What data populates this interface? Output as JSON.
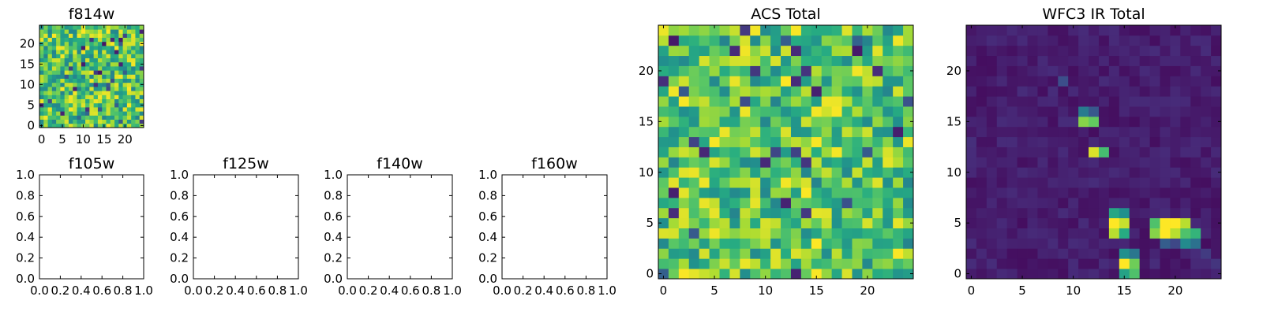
{
  "chart_data": [
    {
      "id": "f814w",
      "type": "heatmap",
      "title": "f814w",
      "grid_size": 25,
      "xlim": [
        -0.5,
        24.5
      ],
      "ylim": [
        -0.5,
        24.5
      ],
      "xticks": [
        0,
        5,
        10,
        15,
        20
      ],
      "xtick_labels": [
        "0",
        "5",
        "10",
        "15",
        "20"
      ],
      "yticks": [
        0,
        5,
        10,
        15,
        20
      ],
      "ytick_labels": [
        "0",
        "5",
        "10",
        "15",
        "20"
      ],
      "colormap": "viridis",
      "pattern": "uniform-noise",
      "seed": 814
    },
    {
      "id": "f105w",
      "type": "empty",
      "title": "f105w",
      "xlim": [
        0,
        1
      ],
      "ylim": [
        0,
        1
      ],
      "xticks": [
        0,
        0.2,
        0.4,
        0.6,
        0.8,
        1.0
      ],
      "xtick_labels": [
        "0.0",
        "0.2",
        "0.4",
        "0.6",
        "0.8",
        "1.0"
      ],
      "yticks": [
        0,
        0.2,
        0.4,
        0.6,
        0.8,
        1.0
      ],
      "ytick_labels": [
        "0.0",
        "0.2",
        "0.4",
        "0.6",
        "0.8",
        "1.0"
      ]
    },
    {
      "id": "f125w",
      "type": "empty",
      "title": "f125w",
      "xlim": [
        0,
        1
      ],
      "ylim": [
        0,
        1
      ],
      "xticks": [
        0,
        0.2,
        0.4,
        0.6,
        0.8,
        1.0
      ],
      "xtick_labels": [
        "0.0",
        "0.2",
        "0.4",
        "0.6",
        "0.8",
        "1.0"
      ],
      "yticks": [
        0,
        0.2,
        0.4,
        0.6,
        0.8,
        1.0
      ],
      "ytick_labels": [
        "0.0",
        "0.2",
        "0.4",
        "0.6",
        "0.8",
        "1.0"
      ]
    },
    {
      "id": "f140w",
      "type": "empty",
      "title": "f140w",
      "xlim": [
        0,
        1
      ],
      "ylim": [
        0,
        1
      ],
      "xticks": [
        0,
        0.2,
        0.4,
        0.6,
        0.8,
        1.0
      ],
      "xtick_labels": [
        "0.0",
        "0.2",
        "0.4",
        "0.6",
        "0.8",
        "1.0"
      ],
      "yticks": [
        0,
        0.2,
        0.4,
        0.6,
        0.8,
        1.0
      ],
      "ytick_labels": [
        "0.0",
        "0.2",
        "0.4",
        "0.6",
        "0.8",
        "1.0"
      ]
    },
    {
      "id": "f160w",
      "type": "empty",
      "title": "f160w",
      "xlim": [
        0,
        1
      ],
      "ylim": [
        0,
        1
      ],
      "xticks": [
        0,
        0.2,
        0.4,
        0.6,
        0.8,
        1.0
      ],
      "xtick_labels": [
        "0.0",
        "0.2",
        "0.4",
        "0.6",
        "0.8",
        "1.0"
      ],
      "yticks": [
        0,
        0.2,
        0.4,
        0.6,
        0.8,
        1.0
      ],
      "ytick_labels": [
        "0.0",
        "0.2",
        "0.4",
        "0.6",
        "0.8",
        "1.0"
      ]
    },
    {
      "id": "acs-total",
      "type": "heatmap",
      "title": "ACS Total",
      "grid_size": 25,
      "xlim": [
        -0.5,
        24.5
      ],
      "ylim": [
        -0.5,
        24.5
      ],
      "xticks": [
        0,
        5,
        10,
        15,
        20
      ],
      "xtick_labels": [
        "0",
        "5",
        "10",
        "15",
        "20"
      ],
      "yticks": [
        0,
        5,
        10,
        15,
        20
      ],
      "ytick_labels": [
        "0",
        "5",
        "10",
        "15",
        "20"
      ],
      "colormap": "viridis",
      "pattern": "uniform-noise",
      "seed": 2024
    },
    {
      "id": "wfc3-ir-total",
      "type": "heatmap",
      "title": "WFC3 IR Total",
      "grid_size": 25,
      "xlim": [
        -0.5,
        24.5
      ],
      "ylim": [
        -0.5,
        24.5
      ],
      "xticks": [
        0,
        5,
        10,
        15,
        20
      ],
      "xtick_labels": [
        "0",
        "5",
        "10",
        "15",
        "20"
      ],
      "yticks": [
        0,
        5,
        10,
        15,
        20
      ],
      "ytick_labels": [
        "0",
        "5",
        "10",
        "15",
        "20"
      ],
      "colormap": "viridis",
      "pattern": "sparse-sources",
      "seed": 3141,
      "background_level": 0.04,
      "bright_pixels": [
        {
          "x": 11,
          "y": 15,
          "v": 0.82
        },
        {
          "x": 12,
          "y": 15,
          "v": 0.76
        },
        {
          "x": 11,
          "y": 16,
          "v": 0.42
        },
        {
          "x": 12,
          "y": 16,
          "v": 0.28
        },
        {
          "x": 12,
          "y": 12,
          "v": 0.95
        },
        {
          "x": 13,
          "y": 12,
          "v": 0.7
        },
        {
          "x": 14,
          "y": 6,
          "v": 0.6
        },
        {
          "x": 15,
          "y": 6,
          "v": 0.5
        },
        {
          "x": 14,
          "y": 5,
          "v": 1.0
        },
        {
          "x": 15,
          "y": 5,
          "v": 0.92
        },
        {
          "x": 14,
          "y": 4,
          "v": 0.9
        },
        {
          "x": 15,
          "y": 4,
          "v": 0.62
        },
        {
          "x": 18,
          "y": 5,
          "v": 0.72
        },
        {
          "x": 19,
          "y": 5,
          "v": 1.0
        },
        {
          "x": 20,
          "y": 5,
          "v": 1.0
        },
        {
          "x": 21,
          "y": 5,
          "v": 0.9
        },
        {
          "x": 18,
          "y": 4,
          "v": 0.82
        },
        {
          "x": 19,
          "y": 4,
          "v": 1.0
        },
        {
          "x": 20,
          "y": 4,
          "v": 0.9
        },
        {
          "x": 21,
          "y": 4,
          "v": 0.72
        },
        {
          "x": 22,
          "y": 4,
          "v": 0.66
        },
        {
          "x": 19,
          "y": 3,
          "v": 0.3
        },
        {
          "x": 20,
          "y": 3,
          "v": 0.22
        },
        {
          "x": 21,
          "y": 3,
          "v": 0.48
        },
        {
          "x": 22,
          "y": 3,
          "v": 0.38
        },
        {
          "x": 15,
          "y": 2,
          "v": 0.5
        },
        {
          "x": 16,
          "y": 2,
          "v": 0.4
        },
        {
          "x": 15,
          "y": 1,
          "v": 1.0
        },
        {
          "x": 16,
          "y": 1,
          "v": 0.78
        },
        {
          "x": 15,
          "y": 0,
          "v": 0.58
        },
        {
          "x": 16,
          "y": 0,
          "v": 0.72
        },
        {
          "x": 9,
          "y": 19,
          "v": 0.24
        },
        {
          "x": 23,
          "y": 2,
          "v": 0.18
        },
        {
          "x": 24,
          "y": 1,
          "v": 0.16
        },
        {
          "x": 0,
          "y": 13,
          "v": 0.14
        }
      ]
    }
  ]
}
